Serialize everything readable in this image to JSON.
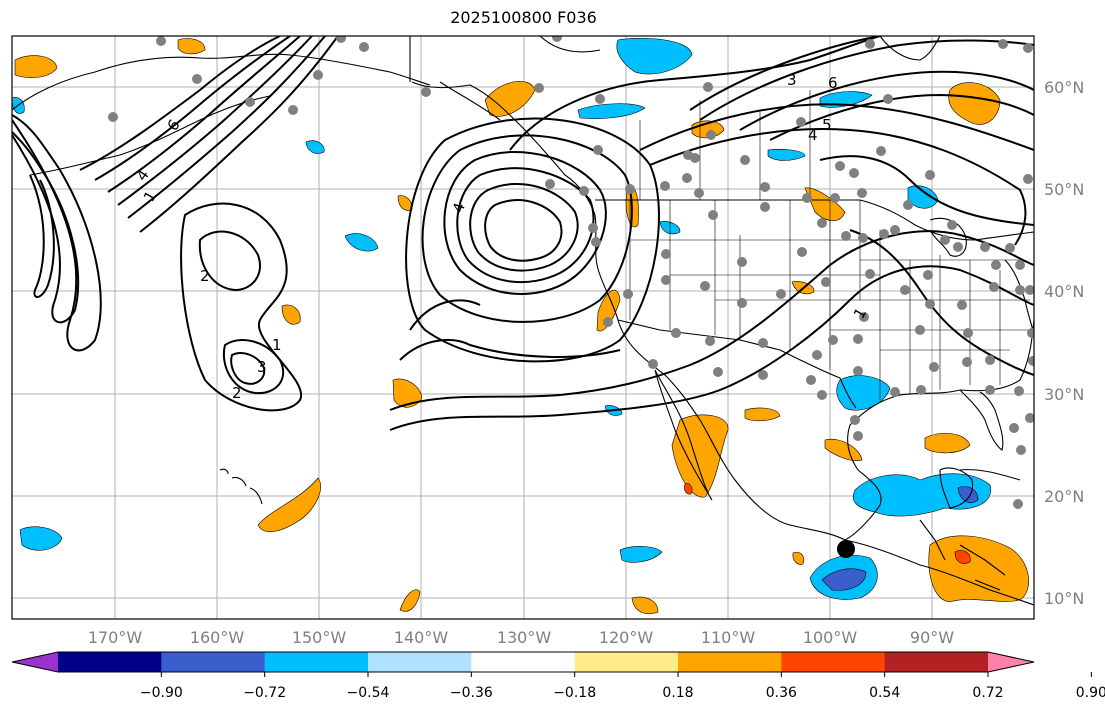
{
  "title": "2025100800 F036",
  "longitude_labels": [
    "170°W",
    "160°W",
    "150°W",
    "140°W",
    "130°W",
    "120°W",
    "110°W",
    "100°W",
    "90°W"
  ],
  "latitude_labels": [
    "60°N",
    "50°N",
    "40°N",
    "30°N",
    "20°N",
    "10°N"
  ],
  "colorbar": {
    "tick_labels": [
      "−0.90",
      "−0.72",
      "−0.54",
      "−0.36",
      "−0.18",
      "0.18",
      "0.36",
      "0.54",
      "0.72",
      "0.90"
    ],
    "colors": [
      "#9a32cd",
      "#00008b",
      "#3a5fcd",
      "#00bfff",
      "#b0e2ff",
      "#ffffff",
      "#ffec8b",
      "#ffa500",
      "#ff4500",
      "#b22222",
      "#ff82ab"
    ]
  },
  "contour_labels": [
    "1",
    "2",
    "3",
    "4",
    "5",
    "6"
  ],
  "colors": {
    "gray_text": "#808080",
    "station": "#808080",
    "marker": "#000000"
  }
}
